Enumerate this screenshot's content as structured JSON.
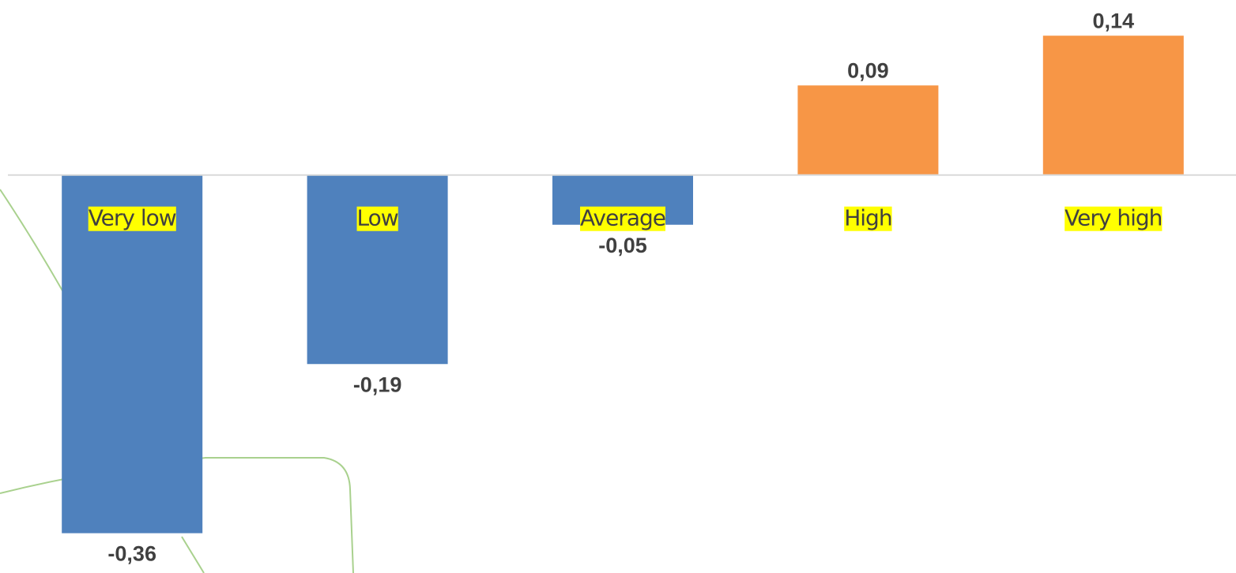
{
  "chart_data": {
    "type": "bar",
    "categories": [
      "Very low",
      "Low",
      "Average",
      "High",
      "Very high"
    ],
    "values": [
      -0.36,
      -0.19,
      -0.05,
      0.09,
      0.14
    ],
    "value_labels": [
      "-0,36",
      "-0,19",
      "-0,05",
      "0,09",
      "0,14"
    ],
    "colors": [
      "#4f81bd",
      "#4f81bd",
      "#4f81bd",
      "#f79646",
      "#f79646"
    ],
    "ylim": [
      -0.4,
      0.16
    ]
  }
}
